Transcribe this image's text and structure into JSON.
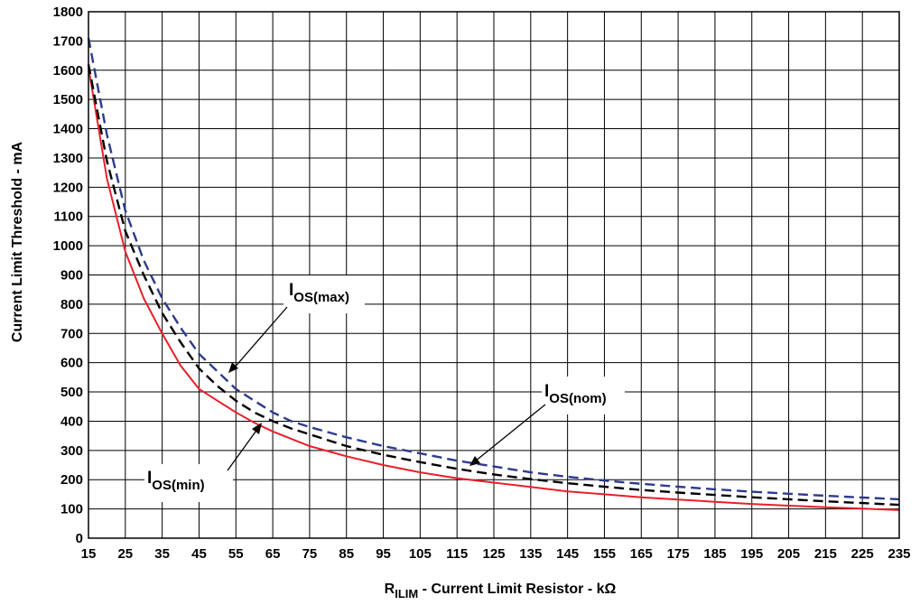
{
  "chart_data": {
    "type": "line",
    "xlabel_main": "R",
    "xlabel_sub": "ILIM",
    "xlabel_rest": " - Current Limit Resistor - kΩ",
    "ylabel": "Current Limit Threshold - mA",
    "xlim": [
      15,
      235
    ],
    "ylim": [
      0,
      1800
    ],
    "x_ticks": [
      15,
      25,
      35,
      45,
      55,
      65,
      75,
      85,
      95,
      105,
      115,
      125,
      135,
      145,
      155,
      165,
      175,
      185,
      195,
      205,
      215,
      225,
      235
    ],
    "y_ticks": [
      0,
      100,
      200,
      300,
      400,
      500,
      600,
      700,
      800,
      900,
      1000,
      1100,
      1200,
      1300,
      1400,
      1500,
      1600,
      1700,
      1800
    ],
    "grid": true,
    "series": [
      {
        "name_main": "I",
        "name_sub": "OS(min)",
        "color": "#e8202a",
        "dash": "solid",
        "x": [
          15,
          20,
          25,
          30,
          35,
          40,
          45,
          50,
          55,
          60,
          65,
          70,
          75,
          85,
          95,
          105,
          115,
          125,
          135,
          145,
          155,
          165,
          175,
          185,
          195,
          205,
          215,
          225,
          235
        ],
        "y": [
          1610,
          1230,
          980,
          820,
          700,
          590,
          510,
          470,
          430,
          395,
          365,
          340,
          315,
          280,
          250,
          225,
          205,
          190,
          175,
          160,
          150,
          140,
          132,
          124,
          117,
          111,
          106,
          101,
          96
        ]
      },
      {
        "name_main": "I",
        "name_sub": "OS(nom)",
        "color": "#000000",
        "dash": "dashed",
        "x": [
          15,
          20,
          25,
          30,
          35,
          40,
          45,
          50,
          55,
          60,
          65,
          70,
          75,
          85,
          95,
          105,
          115,
          125,
          135,
          145,
          155,
          165,
          175,
          185,
          195,
          205,
          215,
          225,
          235
        ],
        "y": [
          1620,
          1290,
          1050,
          900,
          770,
          670,
          580,
          520,
          470,
          430,
          400,
          375,
          355,
          315,
          285,
          260,
          237,
          218,
          202,
          188,
          176,
          165,
          156,
          148,
          140,
          133,
          126,
          120,
          114
        ]
      },
      {
        "name_main": "I",
        "name_sub": "OS(max)",
        "color": "#2e3a8c",
        "dash": "dashed",
        "x": [
          15,
          20,
          25,
          30,
          35,
          40,
          45,
          50,
          55,
          60,
          65,
          70,
          75,
          85,
          95,
          105,
          115,
          125,
          135,
          145,
          155,
          165,
          175,
          185,
          195,
          205,
          215,
          225,
          235
        ],
        "y": [
          1710,
          1380,
          1120,
          950,
          820,
          720,
          630,
          570,
          510,
          470,
          430,
          400,
          380,
          345,
          315,
          290,
          265,
          245,
          225,
          210,
          197,
          186,
          176,
          167,
          159,
          152,
          145,
          139,
          133
        ]
      }
    ]
  }
}
